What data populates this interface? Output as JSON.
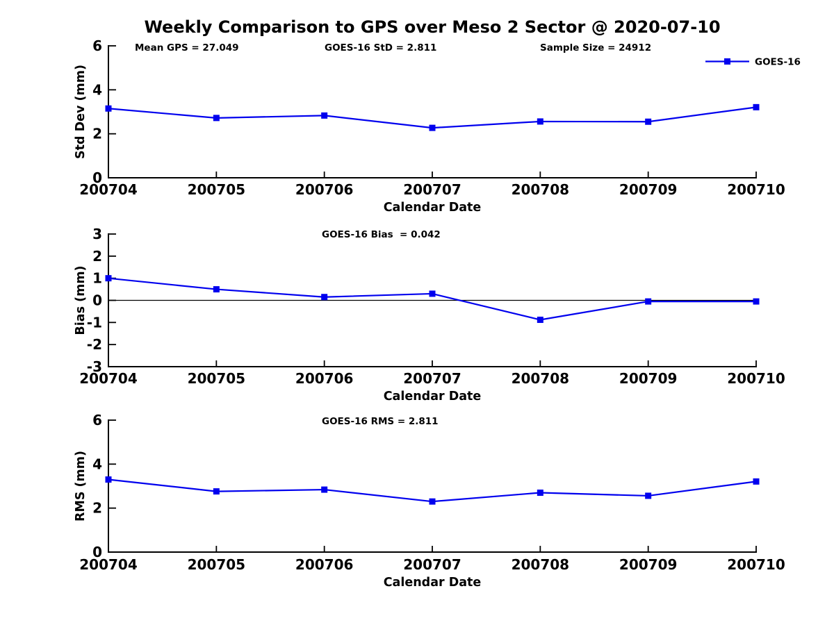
{
  "page_title": "Weekly Comparison to GPS over Meso 2 Sector @ 2020-07-10",
  "colors": {
    "series": "#0000EE",
    "axis": "#000000",
    "text": "#000000",
    "background": "#FFFFFF"
  },
  "legend": {
    "label": "GOES-16"
  },
  "chart_data": [
    {
      "type": "line",
      "id": "std-dev-panel",
      "annotations": [
        "Mean GPS = 27.049",
        "GOES-16 StD = 2.811",
        "Sample Size = 24912"
      ],
      "xlabel": "Calendar Date",
      "ylabel": "Std Dev (mm)",
      "categories": [
        "200704",
        "200705",
        "200706",
        "200707",
        "200708",
        "200709",
        "200710"
      ],
      "series": [
        {
          "name": "GOES-16",
          "values": [
            3.15,
            2.72,
            2.83,
            2.27,
            2.56,
            2.55,
            3.21
          ]
        }
      ],
      "ylim": [
        0,
        6
      ],
      "yticks": [
        0,
        2,
        4,
        6
      ],
      "zero_line": false,
      "show_legend": true,
      "legend_position": "top-right",
      "grid": false
    },
    {
      "type": "line",
      "id": "bias-panel",
      "annotations": [
        "GOES-16 Bias  = 0.042"
      ],
      "xlabel": "Calendar Date",
      "ylabel": "Bias (mm)",
      "categories": [
        "200704",
        "200705",
        "200706",
        "200707",
        "200708",
        "200709",
        "200710"
      ],
      "series": [
        {
          "name": "GOES-16",
          "values": [
            1.0,
            0.5,
            0.15,
            0.3,
            -0.88,
            -0.05,
            -0.05
          ]
        }
      ],
      "ylim": [
        -3,
        3
      ],
      "yticks": [
        -3,
        -2,
        -1,
        0,
        1,
        2,
        3
      ],
      "zero_line": true,
      "show_legend": false,
      "grid": false
    },
    {
      "type": "line",
      "id": "rms-panel",
      "annotations": [
        "GOES-16 RMS = 2.811"
      ],
      "xlabel": "Calendar Date",
      "ylabel": "RMS (mm)",
      "categories": [
        "200704",
        "200705",
        "200706",
        "200707",
        "200708",
        "200709",
        "200710"
      ],
      "series": [
        {
          "name": "GOES-16",
          "values": [
            3.3,
            2.76,
            2.84,
            2.3,
            2.7,
            2.56,
            3.21
          ]
        }
      ],
      "ylim": [
        0,
        6
      ],
      "yticks": [
        0,
        2,
        4,
        6
      ],
      "zero_line": false,
      "show_legend": false,
      "grid": false
    }
  ]
}
